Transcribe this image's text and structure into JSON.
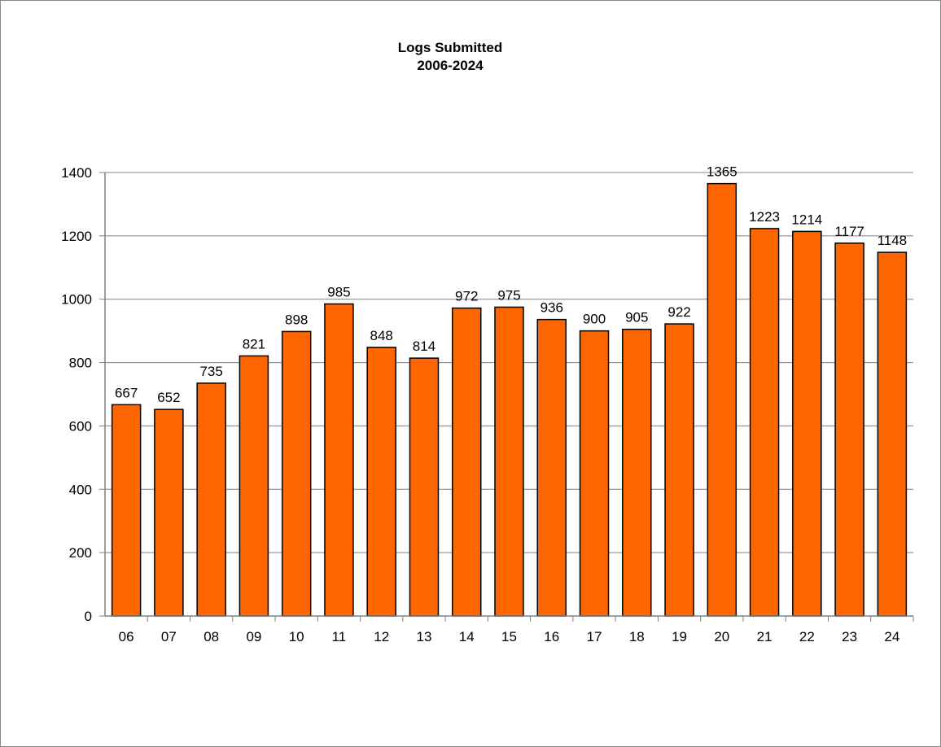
{
  "chart_data": {
    "type": "bar",
    "title": "Logs Submitted",
    "subtitle": "2006-2024",
    "xlabel": "",
    "ylabel": "",
    "categories": [
      "06",
      "07",
      "08",
      "09",
      "10",
      "11",
      "12",
      "13",
      "14",
      "15",
      "16",
      "17",
      "18",
      "19",
      "20",
      "21",
      "22",
      "23",
      "24"
    ],
    "values": [
      667,
      652,
      735,
      821,
      898,
      985,
      848,
      814,
      972,
      975,
      936,
      900,
      905,
      922,
      1365,
      1223,
      1214,
      1177,
      1148
    ],
    "ylim": [
      0,
      1400
    ],
    "yticks": [
      0,
      200,
      400,
      600,
      800,
      1000,
      1200,
      1400
    ],
    "grid": true,
    "legend": "none",
    "bar_color": "#FF6600",
    "bar_edge_color": "#000000"
  }
}
